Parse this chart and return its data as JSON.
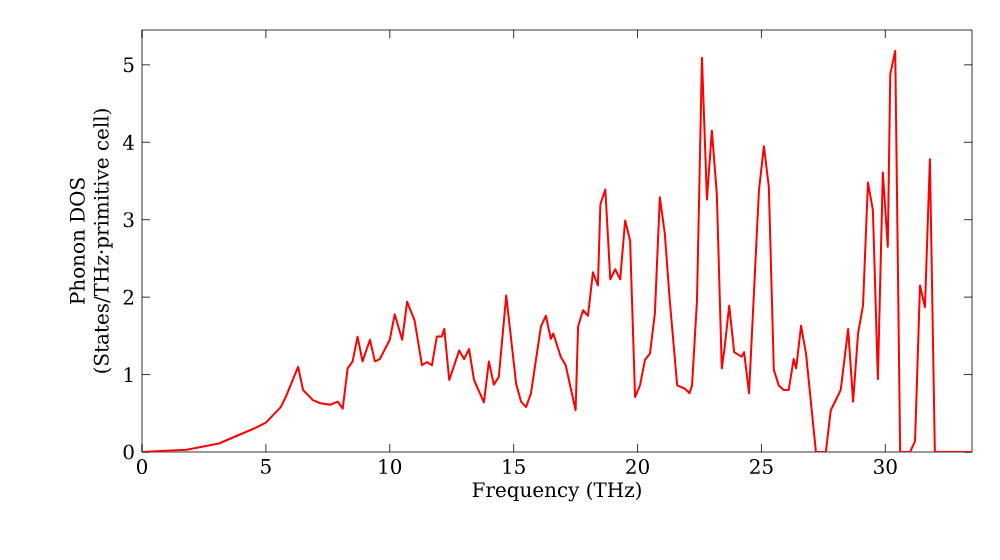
{
  "chart_data": {
    "type": "line",
    "xlabel": "Frequency (THz)",
    "ylabel": "Phonon DOS\n(States/THz·primitive cell)",
    "xlim": [
      0,
      33.5
    ],
    "ylim": [
      0,
      5.45
    ],
    "xticks": [
      0,
      5,
      10,
      15,
      20,
      25,
      30
    ],
    "yticks": [
      0,
      1,
      2,
      3,
      4,
      5
    ],
    "marker": "none",
    "line_style": "solid",
    "series": [
      {
        "color": "#ff0000",
        "x": [
          0,
          1.8,
          3.1,
          4.5,
          5.0,
          5.6,
          5.8,
          6.3,
          6.5,
          6.9,
          7.2,
          7.6,
          7.9,
          8.1,
          8.3,
          8.5,
          8.7,
          8.9,
          9.2,
          9.4,
          9.6,
          10.0,
          10.2,
          10.5,
          10.7,
          11.0,
          11.3,
          11.5,
          11.7,
          11.9,
          12.1,
          12.2,
          12.4,
          12.8,
          13.0,
          13.2,
          13.4,
          13.8,
          14.0,
          14.2,
          14.4,
          14.7,
          15.1,
          15.3,
          15.5,
          15.7,
          16.1,
          16.3,
          16.5,
          16.6,
          16.9,
          17.1,
          17.5,
          17.6,
          17.8,
          18.0,
          18.2,
          18.4,
          18.5,
          18.7,
          18.9,
          19.1,
          19.3,
          19.5,
          19.7,
          19.9,
          20.1,
          20.3,
          20.5,
          20.7,
          20.9,
          21.1,
          21.3,
          21.6,
          21.9,
          22.1,
          22.2,
          22.4,
          22.6,
          22.8,
          23.0,
          23.2,
          23.4,
          23.5,
          23.7,
          23.9,
          24.2,
          24.3,
          24.5,
          24.9,
          25.1,
          25.3,
          25.5,
          25.7,
          25.9,
          26.1,
          26.3,
          26.4,
          26.6,
          26.8,
          27.2,
          27.6,
          27.8,
          28.2,
          28.5,
          28.7,
          28.9,
          29.1,
          29.3,
          29.5,
          29.7,
          29.9,
          30.1,
          30.2,
          30.4,
          30.6,
          31.0,
          31.2,
          31.4,
          31.6,
          31.8,
          32.0,
          33.5
        ],
        "values": [
          0,
          0.03,
          0.11,
          0.3,
          0.38,
          0.58,
          0.71,
          1.1,
          0.8,
          0.67,
          0.63,
          0.61,
          0.65,
          0.56,
          1.08,
          1.17,
          1.49,
          1.17,
          1.45,
          1.17,
          1.2,
          1.45,
          1.78,
          1.45,
          1.94,
          1.7,
          1.12,
          1.16,
          1.12,
          1.49,
          1.49,
          1.59,
          0.93,
          1.31,
          1.2,
          1.33,
          0.93,
          0.64,
          1.17,
          0.87,
          0.97,
          2.02,
          0.88,
          0.65,
          0.58,
          0.76,
          1.62,
          1.76,
          1.46,
          1.53,
          1.23,
          1.12,
          0.54,
          1.62,
          1.83,
          1.76,
          2.32,
          2.15,
          3.2,
          3.39,
          2.23,
          2.36,
          2.23,
          2.99,
          2.73,
          0.71,
          0.86,
          1.19,
          1.27,
          1.79,
          3.29,
          2.82,
          1.96,
          0.86,
          0.82,
          0.76,
          0.86,
          1.96,
          5.09,
          3.26,
          4.15,
          3.33,
          1.08,
          1.31,
          1.89,
          1.29,
          1.23,
          1.29,
          0.76,
          3.38,
          3.95,
          3.42,
          1.06,
          0.86,
          0.8,
          0.8,
          1.2,
          1.08,
          1.63,
          1.27,
          0,
          0,
          0.54,
          0.8,
          1.59,
          0.65,
          1.53,
          1.89,
          3.48,
          3.12,
          0.94,
          3.61,
          2.65,
          4.88,
          5.18,
          0,
          0,
          0.14,
          2.15,
          1.87,
          3.78,
          0,
          0
        ]
      }
    ]
  }
}
